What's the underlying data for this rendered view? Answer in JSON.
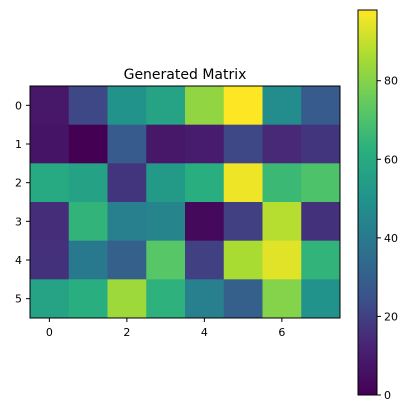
{
  "chart_data": {
    "type": "heatmap",
    "title": "Generated Matrix",
    "xlabel": "",
    "ylabel": "",
    "colormap": "viridis",
    "vmin": 0,
    "vmax": 98,
    "x_ticks": [
      0,
      2,
      4,
      6
    ],
    "y_ticks": [
      0,
      1,
      2,
      3,
      4,
      5
    ],
    "colorbar_ticks": [
      0,
      20,
      40,
      60,
      80
    ],
    "grid": false,
    "matrix": [
      [
        8,
        22,
        50,
        57,
        82,
        98,
        47,
        28
      ],
      [
        7,
        0,
        28,
        8,
        10,
        22,
        14,
        17
      ],
      [
        60,
        56,
        17,
        53,
        62,
        96,
        66,
        70
      ],
      [
        15,
        64,
        42,
        44,
        3,
        20,
        88,
        16
      ],
      [
        16,
        40,
        30,
        72,
        20,
        86,
        94,
        64
      ],
      [
        57,
        62,
        84,
        63,
        42,
        30,
        80,
        50
      ]
    ]
  }
}
